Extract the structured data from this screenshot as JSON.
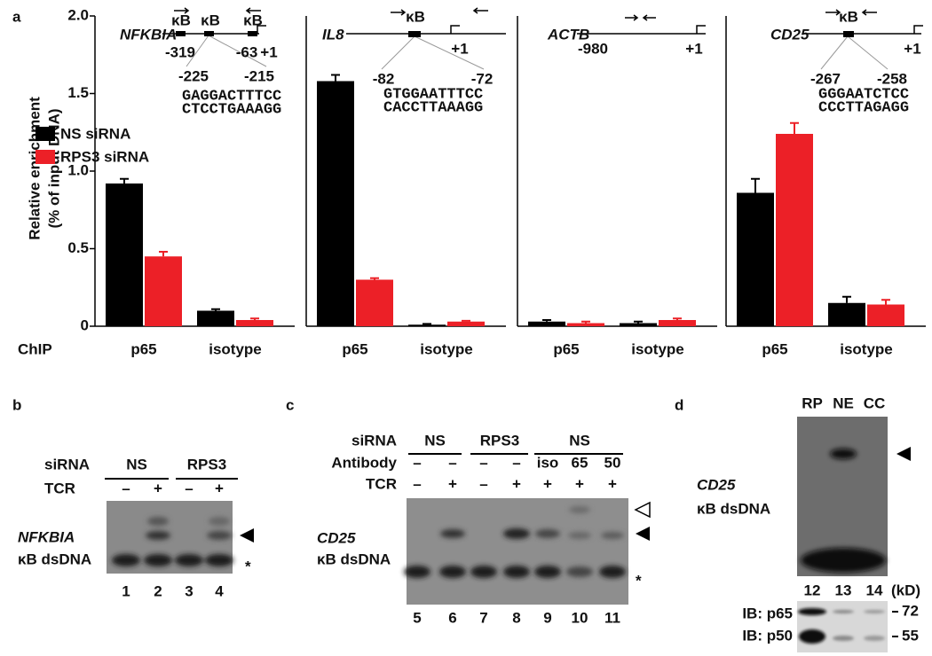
{
  "panel_labels": [
    "a",
    "b",
    "c",
    "d"
  ],
  "chart_data": {
    "type": "bar",
    "ylabel": [
      "Relative enrichment",
      "(% of input DNA)"
    ],
    "xlabel": "ChIP",
    "categories": [
      "p65",
      "isotype",
      "p65",
      "isotype",
      "p65",
      "isotype",
      "p65",
      "isotype"
    ],
    "series": [
      {
        "name": "NS siRNA",
        "color": "#000000",
        "values": [
          0.92,
          0.1,
          1.58,
          0.01,
          0.03,
          0.02,
          0.86,
          0.15
        ],
        "errors": [
          0.03,
          0.01,
          0.04,
          0.005,
          0.01,
          0.01,
          0.09,
          0.04
        ]
      },
      {
        "name": "RPS3 siRNA",
        "color": "#ec2027",
        "values": [
          0.45,
          0.04,
          0.3,
          0.03,
          0.02,
          0.04,
          1.24,
          0.14
        ],
        "errors": [
          0.03,
          0.01,
          0.01,
          0.005,
          0.01,
          0.01,
          0.07,
          0.03
        ]
      }
    ],
    "ylim": [
      0,
      2
    ],
    "yticks": [
      0,
      0.5,
      {
        "value": 1,
        "label": "1.0"
      },
      1.5,
      {
        "value": 2,
        "label": "2.0"
      }
    ],
    "grid": false
  },
  "diagrams": [
    {
      "gene": "NFKBIA",
      "sites": [
        "κB",
        "κB",
        "κB"
      ],
      "positions": [
        "-319",
        "-63",
        "+1"
      ],
      "zoom": [
        "-225",
        "-215"
      ],
      "sequence": [
        "GAGGACTTTCC",
        "CTCCTGAAAGG"
      ]
    },
    {
      "gene": "IL8",
      "sites": [
        "κB"
      ],
      "positions": [
        "+1"
      ],
      "zoom": [
        "-82",
        "-72"
      ],
      "sequence": [
        "GTGGAATTTCC",
        "CACCTTAAAGG"
      ]
    },
    {
      "gene": "ACTB",
      "positions": [
        "-980",
        "+1"
      ]
    },
    {
      "gene": "CD25",
      "sites": [
        "κB"
      ],
      "positions": [
        "+1"
      ],
      "zoom": [
        "-267",
        "-258"
      ],
      "sequence": [
        "GGGAATCTCC",
        "CCCTTAGAGG"
      ]
    }
  ],
  "gel_b": {
    "row_labels": [
      "siRNA",
      "TCR"
    ],
    "sirna": [
      "NS",
      "RPS3"
    ],
    "tcr": [
      "–",
      "+",
      "–",
      "+"
    ],
    "probe": [
      "NFKBIA",
      "κB dsDNA"
    ],
    "lanes": [
      "1",
      "2",
      "3",
      "4"
    ],
    "marker": "*"
  },
  "gel_c": {
    "row_labels": [
      "siRNA",
      "Antibody",
      "TCR"
    ],
    "sirna": [
      "NS",
      "RPS3",
      "NS"
    ],
    "antibody": [
      "–",
      "–",
      "–",
      "–",
      "iso",
      "65",
      "50"
    ],
    "tcr": [
      "–",
      "+",
      "–",
      "+",
      "+",
      "+",
      "+"
    ],
    "probe": [
      "CD25",
      "κB dsDNA"
    ],
    "lanes": [
      "5",
      "6",
      "7",
      "8",
      "9",
      "10",
      "11"
    ],
    "marker": "*"
  },
  "gel_d": {
    "lanes_header": [
      "RP",
      "NE",
      "CC"
    ],
    "probe": [
      "CD25",
      "κB dsDNA"
    ],
    "lanes": [
      "12",
      "13",
      "14"
    ],
    "unit": "(kD)",
    "blots": [
      "IB: p65",
      "IB: p50"
    ],
    "mw": [
      "72",
      "55"
    ]
  }
}
